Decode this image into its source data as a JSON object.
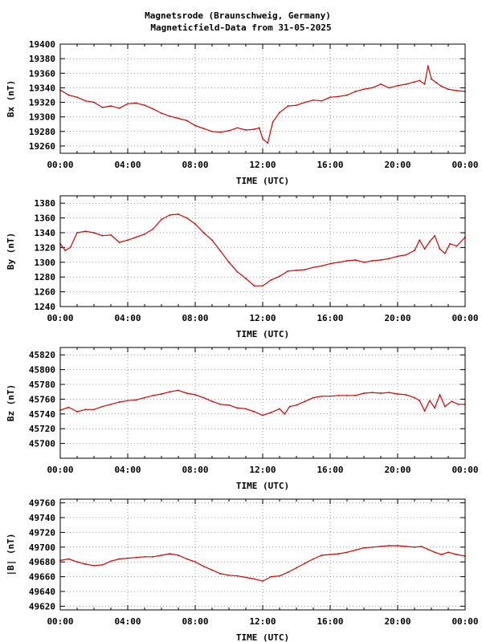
{
  "title_line_1": "Magnetsrode (Braunschweig, Germany)",
  "title_line_2": "Magneticfield-Data from 31-05-2025",
  "series_color": "#dd0000",
  "chart_data": [
    {
      "type": "line",
      "ylabel": "Bx (nT)",
      "xlabel": "TIME (UTC)",
      "xlim": [
        0,
        24
      ],
      "ylim": [
        19250,
        19400
      ],
      "yticks": [
        19260,
        19280,
        19300,
        19320,
        19340,
        19360,
        19380,
        19400
      ],
      "xtick_labels": [
        "00:00",
        "04:00",
        "08:00",
        "12:00",
        "16:00",
        "20:00",
        "00:00"
      ],
      "grid": true,
      "x": [
        0,
        0.5,
        1,
        1.5,
        2,
        2.5,
        3,
        3.5,
        4,
        4.5,
        5,
        5.5,
        6,
        6.5,
        7,
        7.5,
        8,
        8.5,
        9,
        9.5,
        10,
        10.5,
        11,
        11.5,
        11.8,
        12,
        12.3,
        12.6,
        13,
        13.5,
        14,
        14.5,
        15,
        15.5,
        16,
        16.5,
        17,
        17.5,
        18,
        18.5,
        19,
        19.5,
        20,
        20.5,
        21,
        21.3,
        21.6,
        21.8,
        22,
        22.3,
        22.6,
        23,
        23.5,
        24
      ],
      "values": [
        19337,
        19330,
        19327,
        19322,
        19320,
        19313,
        19315,
        19312,
        19318,
        19319,
        19316,
        19311,
        19305,
        19301,
        19298,
        19295,
        19288,
        19284,
        19280,
        19279,
        19281,
        19285,
        19282,
        19283,
        19285,
        19270,
        19264,
        19293,
        19306,
        19315,
        19316,
        19320,
        19323,
        19322,
        19327,
        19328,
        19330,
        19335,
        19338,
        19340,
        19345,
        19340,
        19343,
        19345,
        19348,
        19350,
        19345,
        19370,
        19352,
        19347,
        19342,
        19338,
        19336,
        19335
      ]
    },
    {
      "type": "line",
      "ylabel": "By (nT)",
      "xlabel": "TIME (UTC)",
      "xlim": [
        0,
        24
      ],
      "ylim": [
        1240,
        1390
      ],
      "yticks": [
        1240,
        1260,
        1280,
        1300,
        1320,
        1340,
        1360,
        1380
      ],
      "xtick_labels": [
        "00:00",
        "04:00",
        "08:00",
        "12:00",
        "16:00",
        "20:00",
        "00:00"
      ],
      "grid": true,
      "x": [
        0,
        0.3,
        0.6,
        1,
        1.5,
        2,
        2.5,
        3,
        3.5,
        4,
        4.5,
        5,
        5.5,
        6,
        6.5,
        7,
        7.5,
        8,
        8.5,
        9,
        9.5,
        10,
        10.5,
        11,
        11.5,
        12,
        12.5,
        13,
        13.5,
        14,
        14.5,
        15,
        15.5,
        16,
        16.5,
        17,
        17.5,
        18,
        18.5,
        19,
        19.5,
        20,
        20.5,
        21,
        21.3,
        21.6,
        21.9,
        22.2,
        22.5,
        22.8,
        23.1,
        23.5,
        24
      ],
      "values": [
        1325,
        1316,
        1320,
        1340,
        1342,
        1340,
        1336,
        1337,
        1327,
        1330,
        1334,
        1338,
        1345,
        1358,
        1364,
        1365,
        1360,
        1352,
        1340,
        1330,
        1315,
        1300,
        1287,
        1278,
        1268,
        1268,
        1276,
        1281,
        1288,
        1289,
        1290,
        1293,
        1295,
        1298,
        1300,
        1302,
        1303,
        1300,
        1302,
        1303,
        1305,
        1308,
        1310,
        1316,
        1330,
        1318,
        1328,
        1336,
        1318,
        1312,
        1325,
        1322,
        1334
      ]
    },
    {
      "type": "line",
      "ylabel": "Bz (nT)",
      "xlabel": "TIME (UTC)",
      "xlim": [
        0,
        24
      ],
      "ylim": [
        45680,
        45830
      ],
      "yticks": [
        45700,
        45720,
        45740,
        45760,
        45780,
        45800,
        45820
      ],
      "xtick_labels": [
        "00:00",
        "04:00",
        "08:00",
        "12:00",
        "16:00",
        "20:00",
        "00:00"
      ],
      "grid": true,
      "x": [
        0,
        0.5,
        1,
        1.5,
        2,
        2.5,
        3,
        3.5,
        4,
        4.5,
        5,
        5.5,
        6,
        6.5,
        7,
        7.5,
        8,
        8.5,
        9,
        9.5,
        10,
        10.5,
        11,
        11.5,
        12,
        12.5,
        13,
        13.3,
        13.6,
        14,
        14.5,
        15,
        15.5,
        16,
        16.5,
        17,
        17.5,
        18,
        18.5,
        19,
        19.5,
        20,
        20.5,
        21,
        21.3,
        21.6,
        21.9,
        22.2,
        22.5,
        22.8,
        23.2,
        23.6,
        24
      ],
      "values": [
        45745,
        45749,
        45743,
        45746,
        45746,
        45750,
        45753,
        45756,
        45758,
        45759,
        45762,
        45765,
        45767,
        45770,
        45772,
        45768,
        45766,
        45762,
        45757,
        45753,
        45752,
        45748,
        45747,
        45743,
        45738,
        45742,
        45747,
        45740,
        45750,
        45752,
        45757,
        45762,
        45764,
        45764,
        45765,
        45765,
        45765,
        45768,
        45769,
        45768,
        45769,
        45767,
        45766,
        45762,
        45758,
        45744,
        45758,
        45748,
        45766,
        45750,
        45757,
        45753,
        45753
      ]
    },
    {
      "type": "line",
      "ylabel": "|B| (nT)",
      "xlabel": "TIME (UTC)",
      "xlim": [
        0,
        24
      ],
      "ylim": [
        49615,
        49765
      ],
      "yticks": [
        49620,
        49640,
        49660,
        49680,
        49700,
        49720,
        49740,
        49760
      ],
      "xtick_labels": [
        "00:00",
        "04:00",
        "08:00",
        "12:00",
        "16:00",
        "20:00",
        "00:00"
      ],
      "grid": true,
      "x": [
        0,
        0.5,
        1,
        1.5,
        2,
        2.5,
        3,
        3.5,
        4,
        4.5,
        5,
        5.5,
        6,
        6.5,
        7,
        7.5,
        8,
        8.5,
        9,
        9.5,
        10,
        10.5,
        11,
        11.5,
        12,
        12.5,
        13,
        13.5,
        14,
        14.5,
        15,
        15.5,
        16,
        16.5,
        17,
        17.5,
        18,
        18.5,
        19,
        19.5,
        20,
        20.5,
        21,
        21.4,
        21.8,
        22.2,
        22.6,
        23,
        23.5,
        24
      ],
      "values": [
        49682,
        49684,
        49680,
        49677,
        49675,
        49676,
        49681,
        49684,
        49685,
        49686,
        49687,
        49687,
        49689,
        49691,
        49689,
        49684,
        49680,
        49674,
        49669,
        49664,
        49662,
        49661,
        49659,
        49657,
        49654,
        49660,
        49661,
        49666,
        49672,
        49678,
        49684,
        49689,
        49690,
        49691,
        49693,
        49696,
        49699,
        49700,
        49701,
        49702,
        49702,
        49701,
        49700,
        49701,
        49697,
        49693,
        49690,
        49693,
        49690,
        49688
      ]
    }
  ]
}
